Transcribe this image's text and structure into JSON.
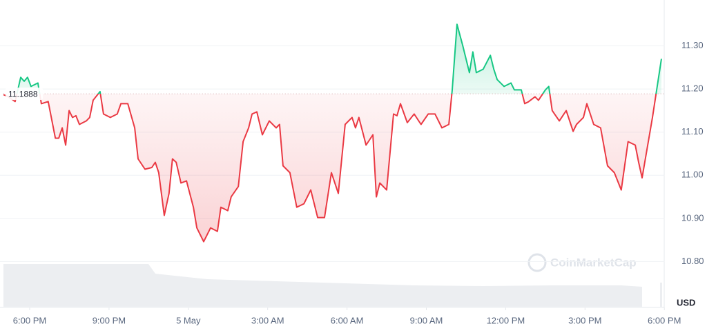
{
  "chart_data": {
    "type": "line",
    "reference": 11.1888,
    "unit": "USD",
    "watermark": "CoinMarketCap",
    "up_color": "#16c784",
    "down_color": "#ea3943",
    "grid": true,
    "xlim": [
      -1,
      24
    ],
    "xticks": [
      {
        "value": 0,
        "label": "6:00 PM"
      },
      {
        "value": 3,
        "label": "9:00 PM"
      },
      {
        "value": 6,
        "label": "5 May"
      },
      {
        "value": 9,
        "label": "3:00 AM"
      },
      {
        "value": 12,
        "label": "6:00 AM"
      },
      {
        "value": 15,
        "label": "9:00 AM"
      },
      {
        "value": 18,
        "label": "12:00 PM"
      },
      {
        "value": 21,
        "label": "3:00 PM"
      },
      {
        "value": 24,
        "label": "6:00 PM"
      }
    ],
    "ylim": [
      10.7,
      11.4
    ],
    "yticks": [
      {
        "value": 10.8,
        "label": "10.80"
      },
      {
        "value": 10.9,
        "label": "10.90"
      },
      {
        "value": 11.0,
        "label": "11.00"
      },
      {
        "value": 11.1,
        "label": "11.10"
      },
      {
        "value": 11.2,
        "label": "11.20"
      },
      {
        "value": 11.3,
        "label": "11.30"
      }
    ],
    "x": [
      -0.99,
      -0.81,
      -0.55,
      -0.34,
      -0.21,
      -0.08,
      0.05,
      0.31,
      0.44,
      0.7,
      0.97,
      1.1,
      1.23,
      1.36,
      1.49,
      1.62,
      1.75,
      1.88,
      2.14,
      2.27,
      2.4,
      2.66,
      2.79,
      3.05,
      3.31,
      3.45,
      3.71,
      3.97,
      4.1,
      4.36,
      4.62,
      4.75,
      4.88,
      5.09,
      5.27,
      5.4,
      5.54,
      5.72,
      5.93,
      6.19,
      6.32,
      6.58,
      6.84,
      7.1,
      7.23,
      7.49,
      7.62,
      7.89,
      8.07,
      8.28,
      8.41,
      8.59,
      8.8,
      9.06,
      9.32,
      9.45,
      9.58,
      9.84,
      10.1,
      10.37,
      10.63,
      10.89,
      11.15,
      11.41,
      11.67,
      11.93,
      12.19,
      12.32,
      12.45,
      12.72,
      12.98,
      13.11,
      13.24,
      13.5,
      13.76,
      13.89,
      14.02,
      14.28,
      14.54,
      14.8,
      15.07,
      15.33,
      15.59,
      15.85,
      15.98,
      16.16,
      16.37,
      16.63,
      16.76,
      16.89,
      17.15,
      17.42,
      17.55,
      17.68,
      17.94,
      18.2,
      18.33,
      18.59,
      18.72,
      18.85,
      19.11,
      19.24,
      19.5,
      19.63,
      19.76,
      20.03,
      20.29,
      20.55,
      20.68,
      20.94,
      21.07,
      21.33,
      21.59,
      21.85,
      22.11,
      22.37,
      22.63,
      22.9,
      23.03,
      23.16,
      23.55,
      23.89
    ],
    "values": [
      11.187,
      11.182,
      11.171,
      11.227,
      11.218,
      11.227,
      11.206,
      11.214,
      11.166,
      11.171,
      11.086,
      11.086,
      11.11,
      11.07,
      11.15,
      11.134,
      11.138,
      11.118,
      11.126,
      11.134,
      11.174,
      11.194,
      11.142,
      11.134,
      11.142,
      11.166,
      11.166,
      11.11,
      11.038,
      11.014,
      11.018,
      11.03,
      11.006,
      10.907,
      10.958,
      11.038,
      11.03,
      10.982,
      10.987,
      10.926,
      10.878,
      10.846,
      10.878,
      10.87,
      10.926,
      10.918,
      10.95,
      10.974,
      11.078,
      11.11,
      11.142,
      11.147,
      11.094,
      11.126,
      11.11,
      11.118,
      11.022,
      11.006,
      10.926,
      10.934,
      10.966,
      10.902,
      10.902,
      11.006,
      10.958,
      11.118,
      11.134,
      11.11,
      11.134,
      11.07,
      11.094,
      10.95,
      10.982,
      10.966,
      11.142,
      11.138,
      11.166,
      11.122,
      11.142,
      11.118,
      11.142,
      11.142,
      11.11,
      11.118,
      11.198,
      11.35,
      11.302,
      11.238,
      11.286,
      11.238,
      11.246,
      11.278,
      11.246,
      11.222,
      11.206,
      11.214,
      11.198,
      11.198,
      11.166,
      11.17,
      11.182,
      11.174,
      11.198,
      11.206,
      11.15,
      11.126,
      11.15,
      11.102,
      11.118,
      11.134,
      11.166,
      11.118,
      11.11,
      11.022,
      11.006,
      10.966,
      11.078,
      11.07,
      11.03,
      10.994,
      11.134,
      11.27
    ]
  }
}
